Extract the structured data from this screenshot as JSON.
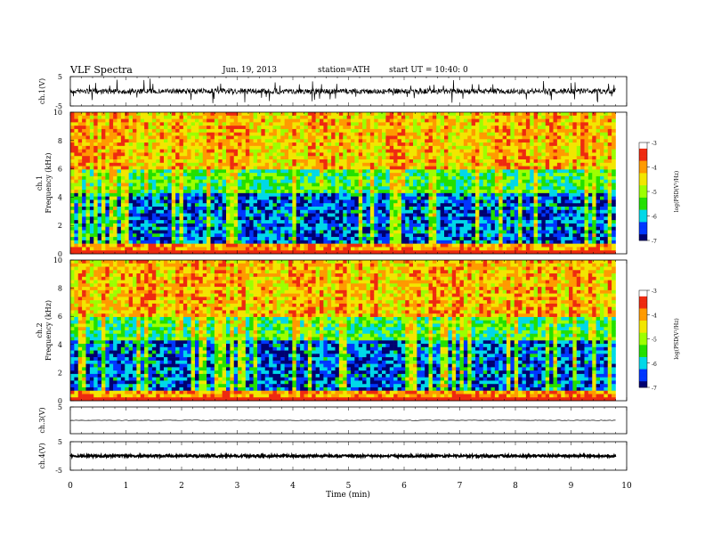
{
  "header": {
    "title": "VLF Spectra",
    "date": "Jun. 19, 2013",
    "station": "station=ATH",
    "start": "start UT =   10:40: 0"
  },
  "chart_data": [
    {
      "type": "line",
      "ylabel": "ch.1(V)",
      "ylim": [
        -5,
        5
      ],
      "yticks": [
        "5",
        "-5"
      ],
      "description_values": {
        "baseline": 0,
        "spread": 1
      }
    },
    {
      "type": "heatmap",
      "ylabel_channel": "ch.1",
      "ylabel": "Frequency (kHz)",
      "ylim": [
        0,
        10
      ],
      "yticks": [
        "0",
        "2",
        "4",
        "6",
        "8",
        "10"
      ],
      "colorbar_label": "log(PSD(V²/Hz)",
      "colorbar_ticks": [
        "-3",
        "-4",
        "-5",
        "-6",
        "-7"
      ],
      "colorbar_range": [
        -7,
        -3
      ]
    },
    {
      "type": "heatmap",
      "ylabel_channel": "ch.2",
      "ylabel": "Frequency (kHz)",
      "ylim": [
        0,
        10
      ],
      "yticks": [
        "0",
        "2",
        "4",
        "6",
        "8",
        "10"
      ],
      "colorbar_label": "log(PSD(V²/Hz)",
      "colorbar_ticks": [
        "-3",
        "-4",
        "-5",
        "-6",
        "-7"
      ],
      "colorbar_range": [
        -7,
        -3
      ]
    },
    {
      "type": "line",
      "ylabel": "ch.3(V)",
      "ylim": [
        -5,
        5
      ],
      "yticks": [
        "5"
      ],
      "description_values": {
        "baseline": 0
      }
    },
    {
      "type": "line",
      "ylabel": "ch.4(V)",
      "ylim": [
        -5,
        5
      ],
      "yticks": [
        "5",
        "-5"
      ],
      "description_values": {
        "baseline": 0
      }
    }
  ],
  "xaxis": {
    "label": "Time (min)",
    "ticks": [
      "0",
      "1",
      "2",
      "3",
      "4",
      "5",
      "6",
      "7",
      "8",
      "9",
      "10"
    ],
    "xlim": [
      0,
      10
    ],
    "data_end": 9.8
  },
  "colors": {
    "red": "#ee2a10",
    "orange": "#ff9a00",
    "yellow": "#f2e600",
    "lime": "#9cff00",
    "green": "#22e000",
    "cyan": "#00d8e8",
    "blue": "#0036ff",
    "navy": "#000070",
    "white": "#ffffff",
    "gray": "#a0a0a0"
  }
}
